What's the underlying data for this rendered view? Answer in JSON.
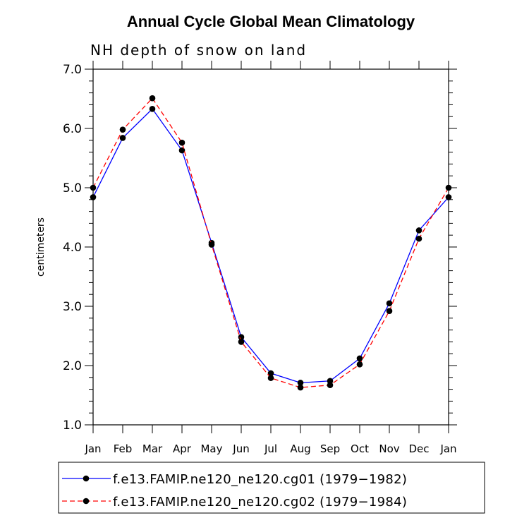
{
  "chart_data": {
    "type": "line",
    "title": "Annual Cycle Global Mean Climatology",
    "subtitle": "NH depth of snow on land",
    "xlabel": "",
    "ylabel": "centimeters",
    "categories": [
      "Jan",
      "Feb",
      "Mar",
      "Apr",
      "May",
      "Jun",
      "Jul",
      "Aug",
      "Sep",
      "Oct",
      "Nov",
      "Dec",
      "Jan"
    ],
    "ylim": [
      1.0,
      7.0
    ],
    "yticks": [
      "1.0",
      "2.0",
      "3.0",
      "4.0",
      "5.0",
      "6.0",
      "7.0"
    ],
    "grid": false,
    "legend_position": "bottom",
    "series": [
      {
        "name": "f.e13.FAMIP.ne120_ne120.cg01 (1979−1982)",
        "color": "#0000ff",
        "dash": "solid",
        "values": [
          4.84,
          5.84,
          6.33,
          5.63,
          4.07,
          2.48,
          1.87,
          1.71,
          1.74,
          2.12,
          3.05,
          4.28,
          4.84
        ]
      },
      {
        "name": "f.e13.FAMIP.ne120_ne120.cg02 (1979−1984)",
        "color": "#ff0000",
        "dash": "dashed",
        "values": [
          5.0,
          5.98,
          6.51,
          5.76,
          4.04,
          2.4,
          1.79,
          1.63,
          1.67,
          2.02,
          2.92,
          4.14,
          5.0
        ]
      }
    ]
  }
}
